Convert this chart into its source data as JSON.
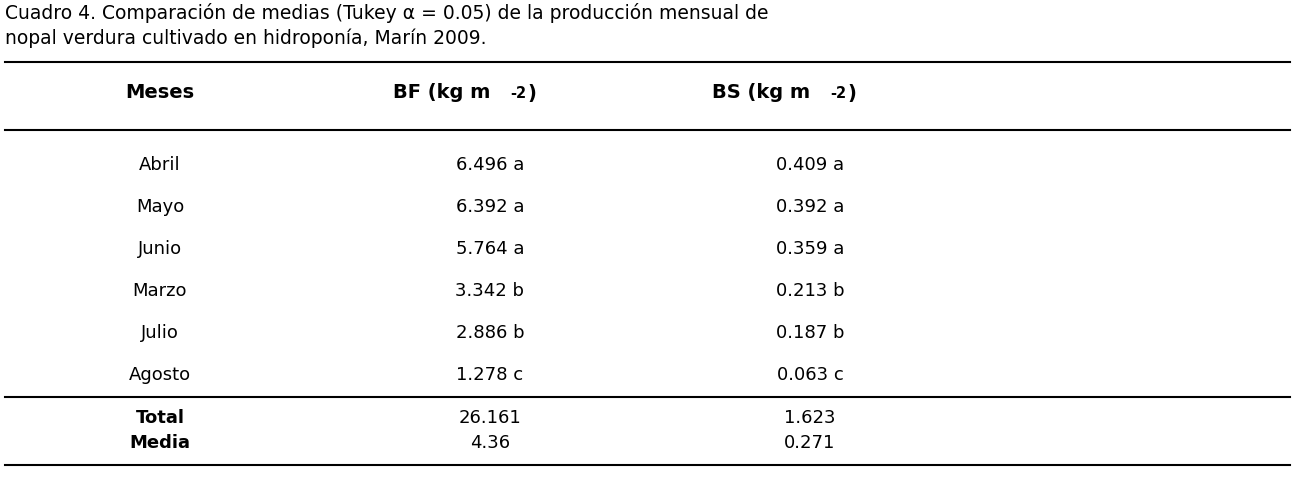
{
  "title_line1": "Cuadro 4. Comparación de medias (Tukey α = 0.05) de la producción mensual de",
  "title_line2": "nopal verdura cultivado en hidroponía, Marín 2009.",
  "col_headers": [
    "Meses",
    "BF (kg m-2)",
    "BS (kg m-2)"
  ],
  "data_rows": [
    [
      "Abril",
      "6.496 a",
      "0.409 a"
    ],
    [
      "Mayo",
      "6.392 a",
      "0.392 a"
    ],
    [
      "Junio",
      "5.764 a",
      "0.359 a"
    ],
    [
      "Marzo",
      "3.342 b",
      "0.213 b"
    ],
    [
      "Julio",
      "2.886 b",
      "0.187 b"
    ],
    [
      "Agosto",
      "1.278 c",
      "0.063 c"
    ]
  ],
  "summary_rows": [
    [
      "Total",
      "26.161",
      "1.623"
    ],
    [
      "Media",
      "4.36",
      "0.271"
    ]
  ],
  "background_color": "#ffffff",
  "text_color": "#000000",
  "header_fontsize": 14,
  "body_fontsize": 13,
  "title_fontsize": 13.5,
  "line_color": "#000000",
  "line_width": 1.5
}
